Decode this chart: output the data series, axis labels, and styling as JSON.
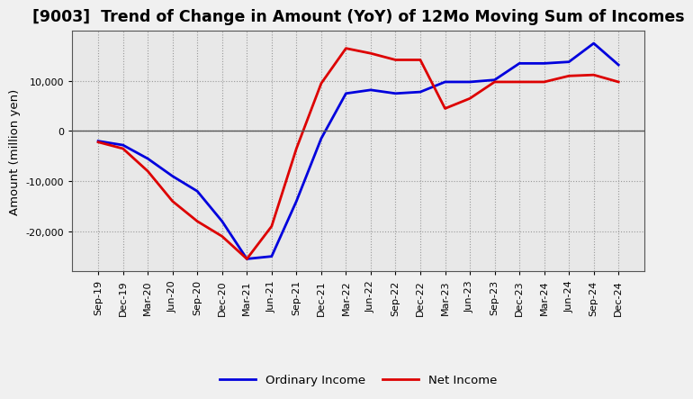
{
  "title": "[9003]  Trend of Change in Amount (YoY) of 12Mo Moving Sum of Incomes",
  "ylabel": "Amount (million yen)",
  "x_labels": [
    "Sep-19",
    "Dec-19",
    "Mar-20",
    "Jun-20",
    "Sep-20",
    "Dec-20",
    "Mar-21",
    "Jun-21",
    "Sep-21",
    "Dec-21",
    "Mar-22",
    "Jun-22",
    "Sep-22",
    "Dec-22",
    "Mar-23",
    "Jun-23",
    "Sep-23",
    "Dec-23",
    "Mar-24",
    "Jun-24",
    "Sep-24",
    "Dec-24"
  ],
  "ordinary_income": [
    -2000,
    -2800,
    -5500,
    -9000,
    -12000,
    -18000,
    -25500,
    -25000,
    -14000,
    -1500,
    7500,
    8200,
    7500,
    7800,
    9800,
    9800,
    10200,
    13500,
    13500,
    13800,
    17500,
    13200
  ],
  "net_income": [
    -2200,
    -3500,
    -8000,
    -14000,
    -18000,
    -21000,
    -25500,
    -19000,
    -3500,
    9500,
    16500,
    15500,
    14200,
    14200,
    4500,
    6500,
    9800,
    9800,
    9800,
    11000,
    11200,
    9800
  ],
  "ordinary_color": "#0000dd",
  "net_color": "#dd0000",
  "background_color": "#f0f0f0",
  "plot_bg_color": "#e8e8e8",
  "grid_color": "#999999",
  "spine_color": "#555555",
  "ylim": [
    -28000,
    20000
  ],
  "yticks": [
    -20000,
    -10000,
    0,
    10000
  ],
  "title_fontsize": 12.5,
  "label_fontsize": 9.5,
  "tick_fontsize": 8,
  "legend_labels": [
    "Ordinary Income",
    "Net Income"
  ],
  "linewidth": 2.0
}
